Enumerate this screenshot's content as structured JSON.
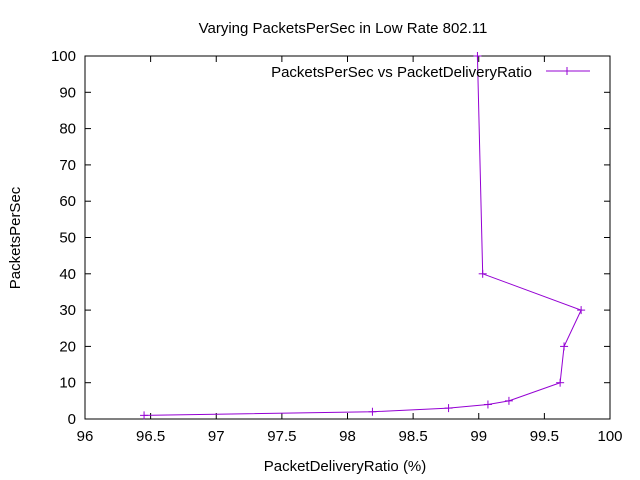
{
  "chart_data": {
    "type": "line",
    "title": "Varying PacketsPerSec in Low Rate 802.11",
    "xlabel": "PacketDeliveryRatio (%)",
    "ylabel": "PacketsPerSec",
    "xlim": [
      96,
      100
    ],
    "ylim": [
      0,
      100
    ],
    "x_ticks": [
      96,
      96.5,
      97,
      97.5,
      98,
      98.5,
      99,
      99.5,
      100
    ],
    "x_tick_labels": [
      "96",
      "96.5",
      "97",
      "97.5",
      "98",
      "98.5",
      "99",
      "99.5",
      "100"
    ],
    "y_ticks": [
      0,
      10,
      20,
      30,
      40,
      50,
      60,
      70,
      80,
      90,
      100
    ],
    "y_tick_labels": [
      "0",
      "10",
      "20",
      "30",
      "40",
      "50",
      "60",
      "70",
      "80",
      "90",
      "100"
    ],
    "grid": false,
    "legend_position": "top-right",
    "series": [
      {
        "name": "PacketsPerSec vs PacketDeliveryRatio",
        "color": "#9400d3",
        "marker": "plus",
        "points": [
          {
            "x": 96.45,
            "y": 1
          },
          {
            "x": 98.19,
            "y": 2
          },
          {
            "x": 98.77,
            "y": 3
          },
          {
            "x": 99.07,
            "y": 4
          },
          {
            "x": 99.23,
            "y": 5
          },
          {
            "x": 99.62,
            "y": 10
          },
          {
            "x": 99.65,
            "y": 20
          },
          {
            "x": 99.78,
            "y": 30
          },
          {
            "x": 99.03,
            "y": 40
          },
          {
            "x": 98.99,
            "y": 100
          }
        ]
      }
    ]
  }
}
